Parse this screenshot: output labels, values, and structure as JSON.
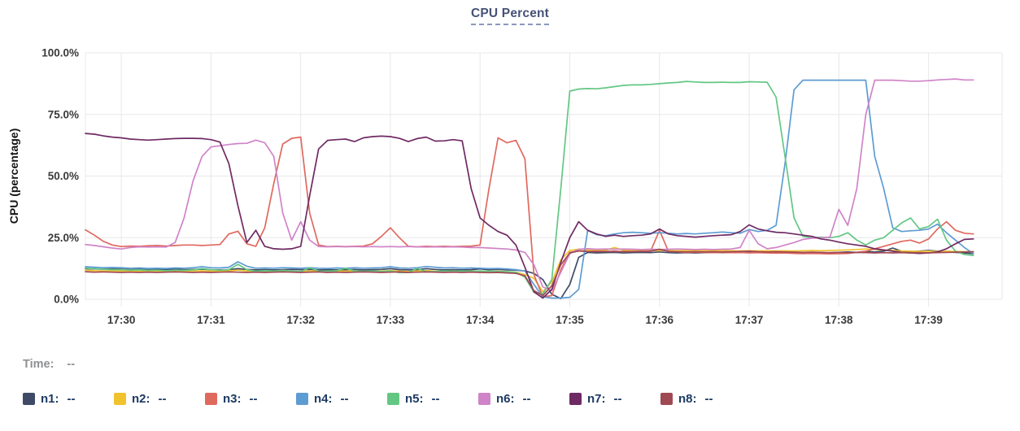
{
  "title": "CPU Percent",
  "time_row": {
    "label": "Time:",
    "value": "--"
  },
  "legend": [
    {
      "name": "n1",
      "label": "n1:",
      "value": "--",
      "color": "#3f4b66"
    },
    {
      "name": "n2",
      "label": "n2:",
      "value": "--",
      "color": "#f0c22e"
    },
    {
      "name": "n3",
      "label": "n3:",
      "value": "--",
      "color": "#e0695f"
    },
    {
      "name": "n4",
      "label": "n4:",
      "value": "--",
      "color": "#5d9cd3"
    },
    {
      "name": "n5",
      "label": "n5:",
      "value": "--",
      "color": "#63c783"
    },
    {
      "name": "n6",
      "label": "n6:",
      "value": "--",
      "color": "#d084c8"
    },
    {
      "name": "n7",
      "label": "n7:",
      "value": "--",
      "color": "#6f2a63"
    },
    {
      "name": "n8",
      "label": "n8:",
      "value": "--",
      "color": "#9f4954"
    }
  ],
  "colors": {
    "grid": "#e8e8eb",
    "axis_text": "#3a3a3a",
    "ylabel_text": "#141414",
    "background": "#ffffff"
  },
  "chart_data": {
    "type": "line",
    "title": "CPU Percent",
    "xlabel": "",
    "ylabel": "CPU (percentage)",
    "grid": true,
    "legend_position": "bottom",
    "x_axis": {
      "tick_labels": [
        "17:30",
        "17:31",
        "17:32",
        "17:33",
        "17:34",
        "17:35",
        "17:36",
        "17:37",
        "17:38",
        "17:39"
      ],
      "tick_minutes": [
        0,
        1,
        2,
        3,
        4,
        5,
        6,
        7,
        8,
        9
      ],
      "domain_minutes": [
        -0.4,
        9.82
      ]
    },
    "y_axis": {
      "tick_labels": [
        "0.0%",
        "25.0%",
        "50.0%",
        "75.0%",
        "100.0%"
      ],
      "tick_values": [
        0,
        25,
        50,
        75,
        100
      ],
      "ylim": [
        0,
        100
      ]
    },
    "sample_start_minute": -0.4,
    "sample_step_minute": 0.1,
    "series": [
      {
        "name": "n1",
        "color": "#3f4b66",
        "values": [
          12.4,
          12.3,
          12.2,
          12.3,
          12.2,
          12,
          12.1,
          12,
          12.1,
          12,
          12.2,
          12,
          12.1,
          12.2,
          12,
          11.9,
          12,
          12.4,
          12.1,
          11.9,
          12,
          11.9,
          12,
          12.1,
          12,
          12.1,
          11.9,
          12,
          11.9,
          12,
          12.1,
          11.9,
          12,
          12.1,
          12.4,
          12,
          11.9,
          12,
          12.4,
          12.1,
          11.9,
          12,
          11.9,
          12,
          12.3,
          12,
          12.1,
          11.9,
          11.8,
          11.5,
          10.5,
          8,
          2,
          0.3,
          6,
          17,
          19,
          18.8,
          18.9,
          19,
          18.8,
          18.9,
          19,
          18.9,
          19.2,
          18.9,
          18.8,
          18.9,
          18.8,
          18.9,
          19,
          18.9,
          19,
          18.9,
          19,
          18.9,
          19,
          18.9,
          19,
          18.8,
          18.9,
          19,
          18.8,
          18.9,
          19,
          19.2,
          19,
          19.4,
          19.2,
          19.5,
          20.8,
          19.5,
          19.3,
          19.5,
          19.8,
          19.5,
          19.3,
          19,
          18.8,
          18.5
        ]
      },
      {
        "name": "n2",
        "color": "#f0c22e",
        "values": [
          11.8,
          11.6,
          11.5,
          11.6,
          11.5,
          11.4,
          11.5,
          11.3,
          11.5,
          11.4,
          11.5,
          11.4,
          11.6,
          11.5,
          11.4,
          11.5,
          11.6,
          11.8,
          11.5,
          11.3,
          11.4,
          11.3,
          11.5,
          11.4,
          11.3,
          11.5,
          11.4,
          11.3,
          11.5,
          11.4,
          11.5,
          11.3,
          11.4,
          11.5,
          11.6,
          11.4,
          11.3,
          11.5,
          11.6,
          11.4,
          11.3,
          11.5,
          11.4,
          11.5,
          11.4,
          11.3,
          11.4,
          11.2,
          11,
          10,
          8.5,
          3,
          7,
          16,
          19.8,
          20.3,
          20,
          19.8,
          19.9,
          21,
          19.9,
          19.8,
          19.9,
          19.8,
          19.7,
          19.8,
          19.7,
          19.8,
          19.7,
          19.8,
          19.7,
          19.8,
          19.7,
          19.6,
          19.7,
          19.6,
          19.7,
          19.6,
          19.7,
          19.6,
          19.7,
          19.8,
          19.7,
          19.8,
          19.9,
          20,
          20.2,
          20.4,
          20.2,
          20,
          19.8,
          19.6,
          19.5,
          19.4,
          19.5,
          19.4,
          19.5,
          19.4,
          19.3,
          19.2
        ]
      },
      {
        "name": "n3",
        "color": "#e0695f",
        "values": [
          28.2,
          26,
          23.5,
          22,
          21.4,
          21.6,
          21.5,
          21.7,
          21.8,
          21.6,
          21.8,
          22,
          22,
          21.8,
          22,
          22.2,
          26.5,
          27.6,
          22.5,
          21.5,
          29,
          47,
          63,
          65.3,
          65.8,
          35,
          22,
          21.4,
          21.5,
          21.4,
          21.5,
          21.6,
          22.5,
          25.5,
          29,
          25,
          21.5,
          21.3,
          21.5,
          21.4,
          21.5,
          21.4,
          21.5,
          21.6,
          22,
          45,
          65.5,
          63.5,
          64.5,
          57,
          10,
          1,
          1.5,
          12,
          19,
          19.6,
          19.4,
          19.5,
          19.4,
          19.5,
          19.3,
          19.4,
          19.5,
          19.4,
          28,
          19.4,
          19.2,
          19,
          19.1,
          19,
          18.9,
          19,
          18.9,
          19,
          18.8,
          18.9,
          18.8,
          18.7,
          18.8,
          18.6,
          18.5,
          18.6,
          18.5,
          18.4,
          18.5,
          18.6,
          19,
          19.5,
          20.5,
          21.5,
          22.5,
          23.5,
          24,
          22.8,
          24.5,
          28.5,
          31.5,
          28,
          26.8,
          26.5
        ]
      },
      {
        "name": "n4",
        "color": "#5d9cd3",
        "values": [
          13.2,
          13,
          12.8,
          12.9,
          12.8,
          12.6,
          12.7,
          12.5,
          12.6,
          12.5,
          12.7,
          12.6,
          12.8,
          13.2,
          12.8,
          12.7,
          13,
          15.2,
          13.4,
          12.6,
          12.7,
          12.6,
          12.8,
          12.7,
          12.6,
          12.8,
          12.6,
          12.5,
          12.7,
          12.6,
          12.8,
          12.6,
          12.7,
          12.8,
          13.2,
          12.7,
          12.6,
          12.8,
          13.3,
          13,
          12.7,
          12.8,
          12.6,
          12.7,
          12.6,
          12.4,
          12.5,
          12.3,
          12,
          11.5,
          6,
          1,
          0.5,
          0.5,
          0.8,
          4,
          28,
          26.2,
          25.8,
          26.5,
          27,
          27.2,
          27,
          26.8,
          27,
          26.8,
          26.5,
          26.7,
          26.5,
          26.8,
          27,
          27.3,
          27,
          26.8,
          28.3,
          27.5,
          28,
          30,
          55,
          85,
          88.9,
          88.9,
          88.9,
          88.9,
          88.9,
          88.9,
          88.9,
          88.9,
          58,
          45,
          29,
          27.5,
          27.8,
          28,
          28.5,
          30.5,
          27,
          24,
          21,
          18.5
        ]
      },
      {
        "name": "n5",
        "color": "#63c783",
        "values": [
          12.6,
          12.4,
          12.2,
          12,
          12,
          11.8,
          11.9,
          11.7,
          11.8,
          11.6,
          11.8,
          11.7,
          11.9,
          12.4,
          12,
          11.8,
          12,
          14.2,
          12,
          11.4,
          11.6,
          11.5,
          11.7,
          11.5,
          11.2,
          12.8,
          11.5,
          11.4,
          11.6,
          12.6,
          11.5,
          11.4,
          11.5,
          11.3,
          11.5,
          10.8,
          10.9,
          12.5,
          11.2,
          11.3,
          11.5,
          11.4,
          11.5,
          11.4,
          11.5,
          11.4,
          11.3,
          11.2,
          11,
          9,
          2.8,
          2.2,
          8,
          45,
          84.5,
          85.3,
          85.5,
          85.4,
          85.8,
          86.3,
          86.8,
          87,
          87,
          87.2,
          87.5,
          87.8,
          88,
          88.4,
          88.2,
          88,
          88,
          88.1,
          88,
          88,
          88.3,
          88.2,
          88.1,
          82,
          58,
          33,
          25.5,
          25,
          25.2,
          25,
          25.5,
          27,
          24,
          22,
          24,
          25,
          28,
          31,
          33,
          28.5,
          29.5,
          32.5,
          24,
          19.5,
          18.2,
          17.8
        ]
      },
      {
        "name": "n6",
        "color": "#d084c8",
        "values": [
          22.2,
          21.8,
          21.3,
          20.8,
          20.4,
          21,
          21.3,
          21.2,
          21.3,
          21.2,
          23,
          33,
          48,
          58,
          61.8,
          62.3,
          62.8,
          63.2,
          63.3,
          64.6,
          63.5,
          58,
          35,
          24,
          31.5,
          24,
          21.4,
          21.3,
          21.4,
          21.3,
          21.4,
          21.3,
          21.4,
          21.3,
          21.4,
          21.3,
          21.4,
          21.3,
          21.2,
          21.3,
          21.2,
          21.3,
          21.2,
          21,
          21,
          20.8,
          20.6,
          20.4,
          20,
          19,
          14,
          5,
          3.5,
          11,
          18.5,
          20.3,
          20.5,
          20.3,
          20.4,
          20.3,
          20.4,
          20.3,
          20.2,
          20.3,
          20.2,
          20.3,
          20.4,
          20.3,
          20.2,
          20.3,
          20.2,
          20.3,
          20.4,
          21,
          28,
          22.5,
          20.5,
          21,
          22,
          23,
          24.3,
          24.8,
          25,
          25.2,
          36.5,
          30,
          45,
          75,
          88.9,
          88.9,
          88.9,
          88.7,
          88.5,
          88.5,
          88.7,
          89,
          89.2,
          89.4,
          89,
          89
        ]
      },
      {
        "name": "n7",
        "color": "#6f2a63",
        "values": [
          67.3,
          67,
          66.3,
          65.8,
          65.5,
          65,
          64.8,
          64.6,
          64.8,
          65,
          65.2,
          65.3,
          65.3,
          65.2,
          64.8,
          63.8,
          55,
          38,
          23,
          28,
          21.5,
          20.5,
          20.3,
          20.5,
          21.5,
          42,
          61,
          64.5,
          64.8,
          65,
          64,
          65.5,
          66,
          66.2,
          66,
          65.3,
          64,
          65.2,
          65.8,
          64.2,
          64.3,
          64.8,
          64.3,
          45,
          33,
          30,
          27.5,
          26,
          22,
          13,
          3,
          0.5,
          4,
          15,
          25,
          31.5,
          28,
          26.5,
          25.5,
          26,
          25.5,
          25.8,
          26,
          26.5,
          28.5,
          26.5,
          25.8,
          25.5,
          25.2,
          25.5,
          25.8,
          26,
          26.2,
          27.5,
          30.2,
          28.5,
          27.8,
          27.2,
          27,
          26.5,
          26,
          25.5,
          24.5,
          24,
          23.2,
          22.5,
          22,
          21.5,
          20.5,
          20,
          19.5,
          19,
          18.8,
          18.6,
          18.8,
          19.2,
          20.5,
          22.5,
          24.3,
          24.5
        ]
      },
      {
        "name": "n8",
        "color": "#9f4954",
        "values": [
          11.2,
          11,
          11.1,
          11,
          10.9,
          11,
          10.9,
          11,
          10.9,
          11,
          11.1,
          11,
          10.9,
          11,
          10.9,
          11,
          11.1,
          11,
          10.9,
          11,
          10.9,
          11,
          11.1,
          11,
          10.9,
          11,
          11.1,
          10.9,
          11,
          10.9,
          11,
          11.1,
          11,
          10.9,
          11,
          11.1,
          10.9,
          11,
          11.1,
          11,
          10.9,
          11,
          10.9,
          11,
          10.9,
          10.8,
          10.9,
          10.7,
          10.5,
          9.5,
          3.5,
          1.5,
          5.5,
          14,
          18.8,
          19.6,
          19.4,
          19.3,
          19.4,
          19.3,
          19.4,
          19.3,
          19.4,
          19.5,
          20.3,
          19.4,
          19.3,
          19.2,
          19.3,
          19.2,
          19.3,
          19.2,
          19.3,
          19.4,
          19.5,
          19.3,
          19.2,
          19.3,
          19.2,
          19.1,
          19,
          19.1,
          19,
          18.9,
          19,
          18.9,
          19,
          18.9,
          18.8,
          18.9,
          18.8,
          18.9,
          18.8,
          18.9,
          18.8,
          18.9,
          19,
          19.1,
          19.2,
          19.3
        ]
      }
    ]
  }
}
